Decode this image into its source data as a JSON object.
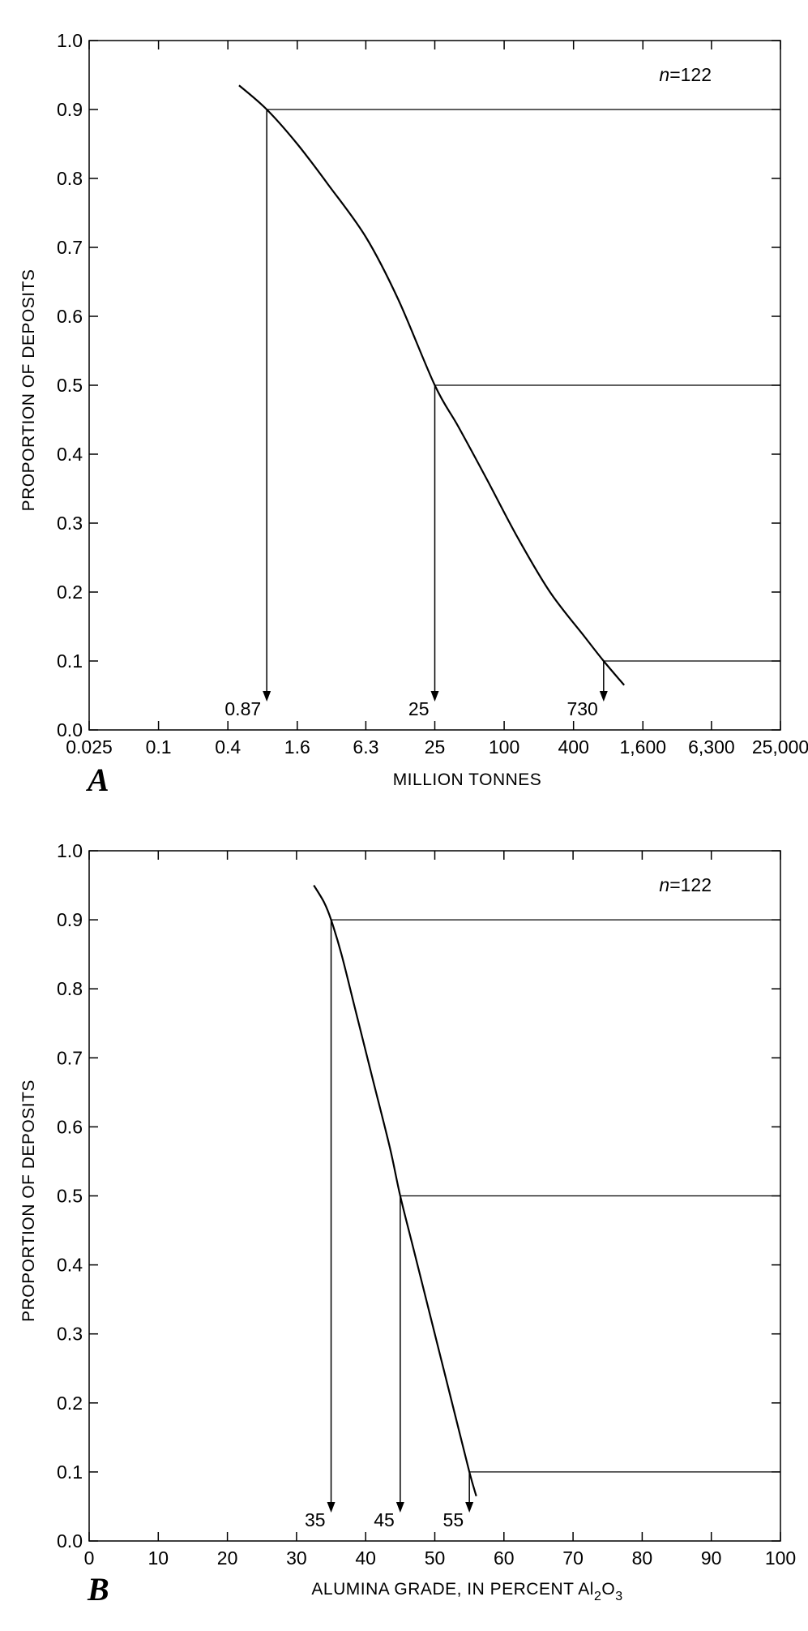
{
  "chart_data": [
    {
      "type": "line",
      "panel_letter": "A",
      "n_label": "n=122",
      "n_label_parts": {
        "var": "n",
        "rest": "=122"
      },
      "xlabel": "MILLION TONNES",
      "ylabel": "PROPORTION OF DEPOSITS",
      "x_scale": "log",
      "x_ticks": [
        0.025,
        0.1,
        0.4,
        1.6,
        6.3,
        25,
        100,
        400,
        1600,
        6300,
        25000
      ],
      "x_tick_labels": [
        "0.025",
        "0.1",
        "0.4",
        "1.6",
        "6.3",
        "25",
        "100",
        "400",
        "1,600",
        "6,300",
        "25,000"
      ],
      "xlim": [
        0.025,
        25000
      ],
      "y_ticks": [
        0.0,
        0.1,
        0.2,
        0.3,
        0.4,
        0.5,
        0.6,
        0.7,
        0.8,
        0.9,
        1.0
      ],
      "y_tick_labels": [
        "0.0",
        "0.1",
        "0.2",
        "0.3",
        "0.4",
        "0.5",
        "0.6",
        "0.7",
        "0.8",
        "0.9",
        "1.0"
      ],
      "ylim": [
        0,
        1
      ],
      "curve": {
        "x": [
          0.5,
          0.87,
          1.6,
          3,
          6.3,
          12,
          25,
          40,
          70,
          130,
          250,
          500,
          730,
          1100
        ],
        "y": [
          0.935,
          0.9,
          0.85,
          0.79,
          0.715,
          0.625,
          0.5,
          0.44,
          0.365,
          0.28,
          0.2,
          0.135,
          0.1,
          0.065
        ]
      },
      "intercepts": [
        {
          "p": 0.9,
          "x": 0.87,
          "label": "0.87"
        },
        {
          "p": 0.5,
          "x": 25,
          "label": "25"
        },
        {
          "p": 0.1,
          "x": 730,
          "label": "730"
        }
      ]
    },
    {
      "type": "line",
      "panel_letter": "B",
      "n_label": "n=122",
      "n_label_parts": {
        "var": "n",
        "rest": "=122"
      },
      "xlabel": "ALUMINA GRADE, IN PERCENT Al2O3",
      "xlabel_parts": {
        "main": "ALUMINA GRADE, IN PERCENT Al",
        "sub1": "2",
        "mid": "O",
        "sub2": "3"
      },
      "ylabel": "PROPORTION OF DEPOSITS",
      "x_scale": "linear",
      "x_ticks": [
        0,
        10,
        20,
        30,
        40,
        50,
        60,
        70,
        80,
        90,
        100
      ],
      "x_tick_labels": [
        "0",
        "10",
        "20",
        "30",
        "40",
        "50",
        "60",
        "70",
        "80",
        "90",
        "100"
      ],
      "xlim": [
        0,
        100
      ],
      "y_ticks": [
        0.0,
        0.1,
        0.2,
        0.3,
        0.4,
        0.5,
        0.6,
        0.7,
        0.8,
        0.9,
        1.0
      ],
      "y_tick_labels": [
        "0.0",
        "0.1",
        "0.2",
        "0.3",
        "0.4",
        "0.5",
        "0.6",
        "0.7",
        "0.8",
        "0.9",
        "1.0"
      ],
      "ylim": [
        0,
        1
      ],
      "curve": {
        "x": [
          32.5,
          34,
          35,
          36.5,
          38.5,
          41,
          43.5,
          45,
          47,
          50,
          53,
          55,
          56
        ],
        "y": [
          0.95,
          0.925,
          0.9,
          0.85,
          0.77,
          0.67,
          0.57,
          0.5,
          0.42,
          0.3,
          0.18,
          0.1,
          0.065
        ]
      },
      "intercepts": [
        {
          "p": 0.9,
          "x": 35,
          "label": "35"
        },
        {
          "p": 0.5,
          "x": 45,
          "label": "45"
        },
        {
          "p": 0.1,
          "x": 55,
          "label": "55"
        }
      ]
    }
  ]
}
